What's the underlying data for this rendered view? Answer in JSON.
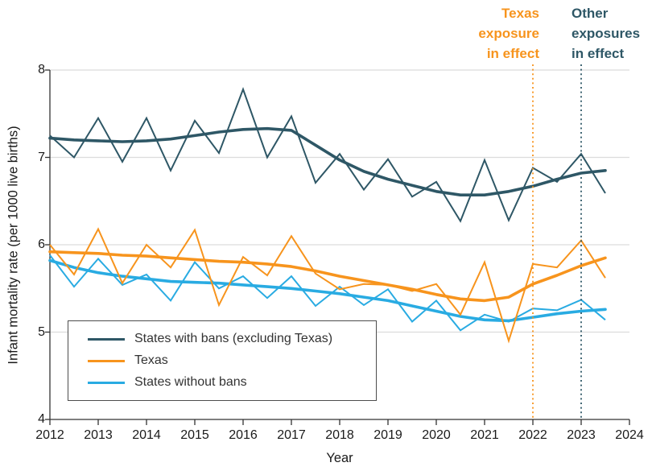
{
  "chart_data": {
    "type": "line",
    "title": "",
    "xlabel": "Year",
    "ylabel": "Infant mortality rate (per 1000 live births)",
    "xlim": [
      2012,
      2024
    ],
    "ylim": [
      4,
      8
    ],
    "x_ticks": [
      2012,
      2013,
      2014,
      2015,
      2016,
      2017,
      2018,
      2019,
      2020,
      2021,
      2022,
      2023,
      2024
    ],
    "y_ticks": [
      8,
      7,
      6,
      5,
      4
    ],
    "grid": "horizontal",
    "legend_position": "lower-left-box",
    "x_step_years": 0.5,
    "x_start": 2012.0,
    "series": [
      {
        "name": "States with bans (excluding Texas)",
        "color": "#2e5766",
        "raw": [
          7.25,
          7.0,
          7.45,
          6.95,
          7.45,
          6.85,
          7.42,
          7.05,
          7.78,
          7.0,
          7.47,
          6.71,
          7.04,
          6.63,
          6.98,
          6.55,
          6.72,
          6.27,
          6.97,
          6.28,
          6.88,
          6.72,
          7.04,
          6.59
        ],
        "trend": [
          7.22,
          7.2,
          7.19,
          7.18,
          7.19,
          7.21,
          7.25,
          7.29,
          7.32,
          7.33,
          7.31,
          7.14,
          6.97,
          6.84,
          6.75,
          6.68,
          6.61,
          6.57,
          6.57,
          6.61,
          6.67,
          6.75,
          6.82,
          6.85
        ]
      },
      {
        "name": "Texas",
        "color": "#f7941d",
        "raw": [
          6.0,
          5.66,
          6.18,
          5.56,
          6.0,
          5.74,
          6.17,
          5.31,
          5.86,
          5.65,
          6.1,
          5.67,
          5.49,
          5.55,
          5.54,
          5.47,
          5.55,
          5.2,
          5.8,
          4.9,
          5.78,
          5.74,
          6.05,
          5.62
        ],
        "trend": [
          5.92,
          5.91,
          5.9,
          5.88,
          5.87,
          5.85,
          5.83,
          5.81,
          5.8,
          5.78,
          5.75,
          5.7,
          5.64,
          5.59,
          5.54,
          5.49,
          5.43,
          5.38,
          5.36,
          5.4,
          5.55,
          5.65,
          5.76,
          5.85
        ]
      },
      {
        "name": "States without bans",
        "color": "#29abe2",
        "raw": [
          5.88,
          5.52,
          5.84,
          5.54,
          5.66,
          5.36,
          5.8,
          5.5,
          5.64,
          5.39,
          5.64,
          5.3,
          5.52,
          5.31,
          5.49,
          5.12,
          5.36,
          5.02,
          5.2,
          5.12,
          5.27,
          5.25,
          5.37,
          5.14
        ],
        "trend": [
          5.82,
          5.74,
          5.68,
          5.64,
          5.61,
          5.58,
          5.57,
          5.56,
          5.54,
          5.52,
          5.5,
          5.47,
          5.44,
          5.4,
          5.36,
          5.3,
          5.24,
          5.18,
          5.14,
          5.13,
          5.17,
          5.21,
          5.24,
          5.26
        ]
      }
    ],
    "events": [
      {
        "label": "Texas\nexposure\nin effect",
        "x": 2022,
        "color": "#f7941d"
      },
      {
        "label": "Other\nexposures\nin effect",
        "x": 2023,
        "color": "#2e5766"
      }
    ],
    "colors": {
      "grid": "#dcdcdc",
      "axis": "#333333",
      "text": "#1a1a1a"
    }
  }
}
